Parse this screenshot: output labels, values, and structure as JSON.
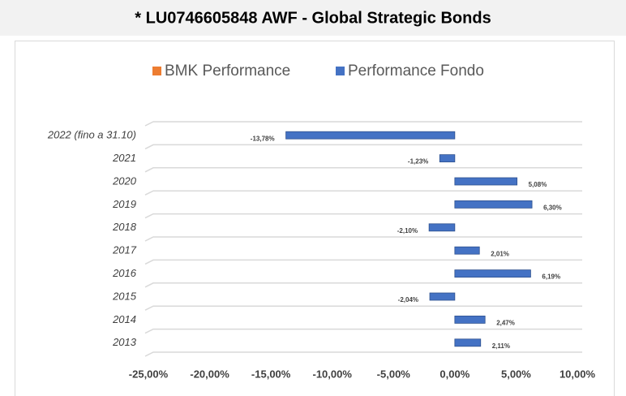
{
  "chart_data": {
    "type": "bar",
    "orientation": "horizontal",
    "title": "* LU0746605848 AWF - Global Strategic Bonds",
    "categories": [
      "2022 (fino a 31.10)",
      "2021",
      "2020",
      "2019",
      "2018",
      "2017",
      "2016",
      "2015",
      "2014",
      "2013"
    ],
    "series": [
      {
        "name": "BMK Performance",
        "color": "#ed7d31",
        "values": [
          0,
          0,
          0,
          0,
          0,
          0,
          0,
          0,
          0,
          0
        ]
      },
      {
        "name": "Performance Fondo",
        "color": "#4472c4",
        "values": [
          -13.78,
          -1.23,
          5.08,
          6.3,
          -2.1,
          2.01,
          6.19,
          -2.04,
          2.47,
          2.11
        ],
        "value_labels": [
          "-13,78%",
          "-1,23%",
          "5,08%",
          "6,30%",
          "-2,10%",
          "2,01%",
          "6,19%",
          "-2,04%",
          "2,47%",
          "2,11%"
        ]
      }
    ],
    "xlim": [
      -25,
      10
    ],
    "xticks": [
      {
        "value": -25,
        "label": "-25,00%"
      },
      {
        "value": -20,
        "label": "-20,00%"
      },
      {
        "value": -15,
        "label": "-15,00%"
      },
      {
        "value": -10,
        "label": "-10,00%"
      },
      {
        "value": -5,
        "label": "-5,00%"
      },
      {
        "value": 0,
        "label": "0,00%"
      },
      {
        "value": 5,
        "label": "5,00%"
      },
      {
        "value": 10,
        "label": "10,00%"
      }
    ],
    "legend": "top"
  }
}
